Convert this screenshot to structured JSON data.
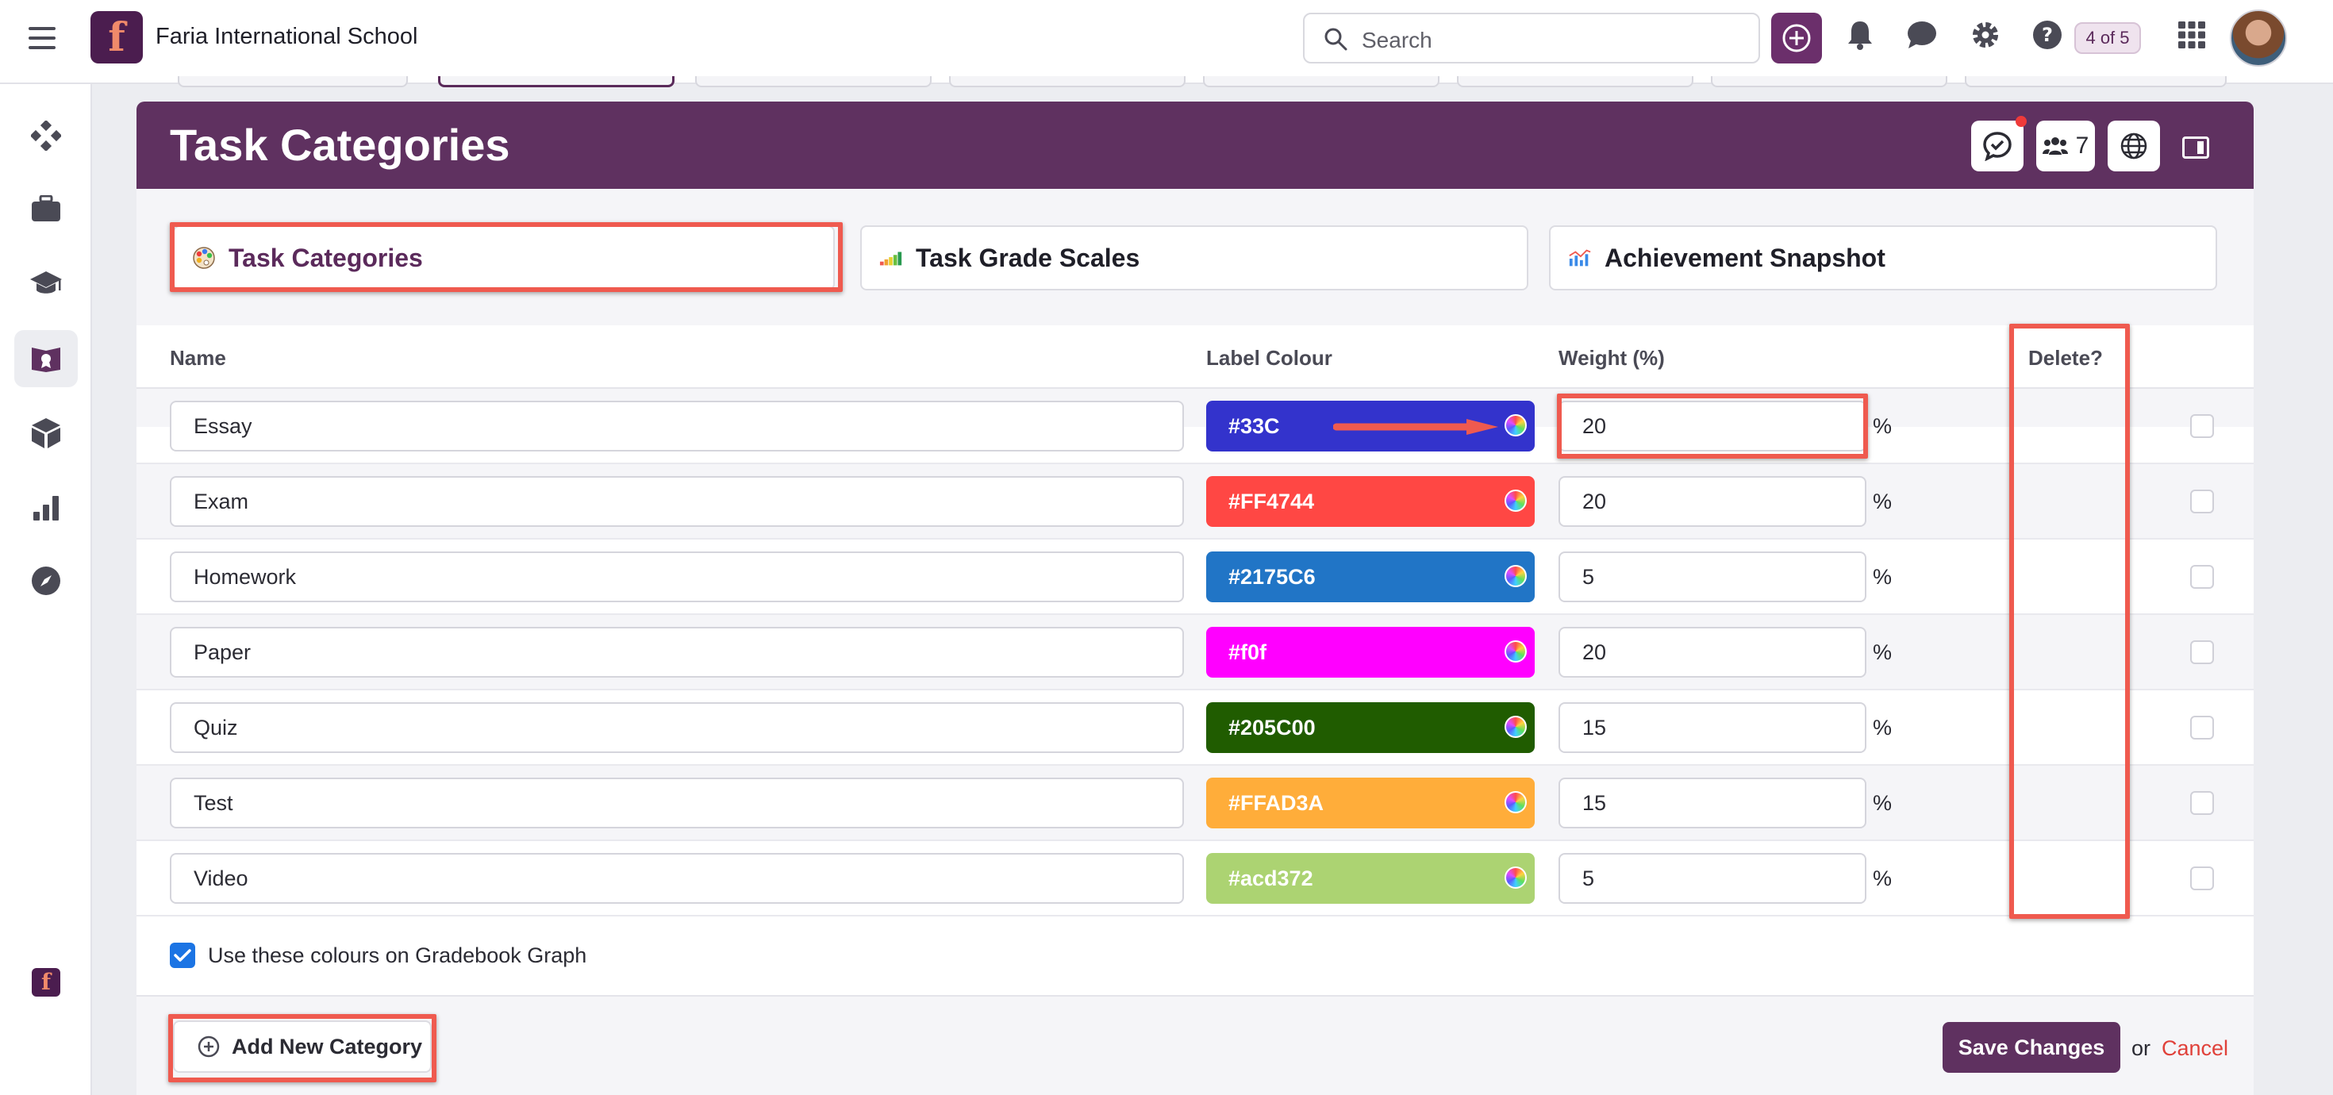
{
  "topbar": {
    "school_name": "Faria International School",
    "logo_letter": "f",
    "search_placeholder": "Search",
    "page_count": "4 of 5",
    "icons": [
      "menu-icon",
      "add-icon",
      "bell-icon",
      "chat-icon",
      "gear-icon",
      "help-icon",
      "apps-grid-icon"
    ]
  },
  "sidebar": {
    "items": [
      {
        "icon": "diamond-icon",
        "active": false
      },
      {
        "icon": "briefcase-icon",
        "active": false
      },
      {
        "icon": "graduation-cap-icon",
        "active": false
      },
      {
        "icon": "gradebook-icon",
        "active": true
      },
      {
        "icon": "cube-icon",
        "active": false
      },
      {
        "icon": "bar-chart-icon",
        "active": false
      },
      {
        "icon": "compass-icon",
        "active": false
      }
    ]
  },
  "panel": {
    "title": "Task Categories",
    "members_count": "7",
    "header_icons": [
      "chat-bubble-icon",
      "people-icon",
      "globe-icon",
      "panel-toggle-icon"
    ]
  },
  "tabs": [
    {
      "label": "Task Categories",
      "icon": "palette-icon",
      "active": true
    },
    {
      "label": "Task Grade Scales",
      "icon": "scale-chart-icon",
      "active": false
    },
    {
      "label": "Achievement Snapshot",
      "icon": "snapshot-chart-icon",
      "active": false
    }
  ],
  "table": {
    "headers": {
      "name": "Name",
      "label_colour": "Label Colour",
      "weight": "Weight (%)",
      "delete": "Delete?"
    },
    "rows": [
      {
        "name": "Essay",
        "colour": "#33C",
        "colour_hex": "#3333CC",
        "weight": "20",
        "unit": "%"
      },
      {
        "name": "Exam",
        "colour": "#FF4744",
        "colour_hex": "#FF4744",
        "weight": "20",
        "unit": "%"
      },
      {
        "name": "Homework",
        "colour": "#2175C6",
        "colour_hex": "#2175C6",
        "weight": "5",
        "unit": "%"
      },
      {
        "name": "Paper",
        "colour": "#f0f",
        "colour_hex": "#FF00FF",
        "weight": "20",
        "unit": "%"
      },
      {
        "name": "Quiz",
        "colour": "#205C00",
        "colour_hex": "#205C00",
        "weight": "15",
        "unit": "%"
      },
      {
        "name": "Test",
        "colour": "#FFAD3A",
        "colour_hex": "#FFAD3A",
        "weight": "15",
        "unit": "%"
      },
      {
        "name": "Video",
        "colour": "#acd372",
        "colour_hex": "#ACD372",
        "weight": "5",
        "unit": "%"
      }
    ]
  },
  "gradebook_option": {
    "label": "Use these colours on Gradebook Graph",
    "checked": true
  },
  "footer": {
    "add_label": "Add New Category",
    "save_label": "Save Changes",
    "or_text": "or",
    "cancel_label": "Cancel"
  },
  "colors": {
    "brand": "#5F3160",
    "accent_red": "#EF5A4F",
    "cancel": "#E0413A",
    "check_blue": "#1B74E4"
  }
}
